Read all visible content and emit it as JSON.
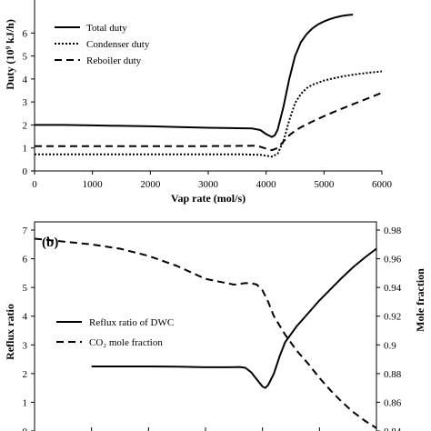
{
  "chart_data": [
    {
      "type": "line",
      "xlabel": "Vap rate (mol/s)",
      "ylabel": "Duty (10⁹ kJ/h)",
      "xlim": [
        0,
        6000
      ],
      "ylim": [
        0,
        7
      ],
      "x_ticks": [
        "0",
        "1000",
        "2000",
        "3000",
        "4000",
        "5000",
        "6000"
      ],
      "y_ticks": [
        "0",
        "1",
        "2",
        "3",
        "4",
        "5",
        "6"
      ],
      "legend_position": "top-left",
      "series": [
        {
          "name": "Total duty",
          "style": "solid",
          "x": [
            0,
            500,
            1000,
            1500,
            2000,
            2500,
            3000,
            3500,
            3750,
            3900,
            4000,
            4100,
            4150,
            4200,
            4300,
            4400,
            4500,
            4600,
            4700,
            4800,
            4900,
            5000,
            5100,
            5200,
            5300,
            5400,
            5500
          ],
          "y": [
            2.0,
            2.0,
            1.98,
            1.96,
            1.94,
            1.91,
            1.88,
            1.86,
            1.85,
            1.78,
            1.6,
            1.48,
            1.55,
            1.8,
            2.8,
            4.0,
            5.0,
            5.6,
            5.95,
            6.2,
            6.38,
            6.5,
            6.6,
            6.68,
            6.74,
            6.78,
            6.8
          ]
        },
        {
          "name": "Condenser duty",
          "style": "dotted",
          "x": [
            0,
            1000,
            2000,
            3000,
            3600,
            3900,
            4000,
            4100,
            4200,
            4300,
            4400,
            4500,
            4600,
            4700,
            4800,
            5000,
            5200,
            5400,
            5600,
            5800,
            6000
          ],
          "y": [
            0.72,
            0.72,
            0.72,
            0.72,
            0.72,
            0.7,
            0.66,
            0.62,
            0.75,
            1.3,
            2.2,
            2.95,
            3.35,
            3.6,
            3.75,
            3.93,
            4.05,
            4.15,
            4.22,
            4.28,
            4.33
          ]
        },
        {
          "name": "Reboiler duty",
          "style": "dashed",
          "x": [
            0,
            1000,
            2000,
            3000,
            3600,
            3800,
            3900,
            4000,
            4100,
            4200,
            4300,
            4400,
            4500,
            4600,
            4800,
            5000,
            5200,
            5400,
            5600,
            5800,
            6000
          ],
          "y": [
            1.08,
            1.08,
            1.08,
            1.08,
            1.09,
            1.1,
            1.05,
            0.97,
            0.9,
            1.0,
            1.28,
            1.55,
            1.75,
            1.9,
            2.15,
            2.38,
            2.6,
            2.8,
            3.0,
            3.2,
            3.4
          ]
        }
      ]
    },
    {
      "type": "line",
      "panel_label": "(b)",
      "ylabel_left": "Reflux ratio",
      "ylabel_right": "Mole fraction",
      "ylim_left": [
        0,
        7
      ],
      "ylim_right": [
        0.84,
        0.98
      ],
      "y_ticks_left": [
        "0",
        "1",
        "2",
        "3",
        "4",
        "5",
        "6",
        "7"
      ],
      "y_ticks_right": [
        "0.84",
        "0.86",
        "0.88",
        "0.9",
        "0.92",
        "0.94",
        "0.96",
        "0.98"
      ],
      "legend_position": "center-left",
      "series": [
        {
          "name": "Reflux ratio of DWC",
          "style": "solid",
          "axis": "left",
          "x": [
            1000,
            1500,
            2000,
            2500,
            3000,
            3400,
            3600,
            3700,
            3800,
            3900,
            4000,
            4050,
            4100,
            4200,
            4300,
            4400,
            4600,
            4800,
            5000,
            5200,
            5400,
            5600,
            5800,
            6000
          ],
          "y": [
            2.25,
            2.25,
            2.25,
            2.24,
            2.22,
            2.22,
            2.23,
            2.2,
            2.05,
            1.8,
            1.55,
            1.5,
            1.6,
            2.0,
            2.6,
            3.1,
            3.65,
            4.1,
            4.55,
            4.95,
            5.35,
            5.72,
            6.05,
            6.35
          ]
        },
        {
          "name": "CO₂ mole fraction",
          "style": "dashed",
          "axis": "right",
          "x": [
            0,
            500,
            1000,
            1500,
            2000,
            2500,
            3000,
            3500,
            3700,
            3800,
            3900,
            4000,
            4100,
            4200,
            4400,
            4600,
            4800,
            5000,
            5200,
            5400,
            5600,
            5800,
            6000
          ],
          "y": [
            0.974,
            0.972,
            0.97,
            0.967,
            0.962,
            0.955,
            0.946,
            0.942,
            0.943,
            0.943,
            0.942,
            0.938,
            0.93,
            0.92,
            0.907,
            0.896,
            0.887,
            0.877,
            0.868,
            0.86,
            0.853,
            0.847,
            0.842
          ]
        }
      ]
    }
  ]
}
